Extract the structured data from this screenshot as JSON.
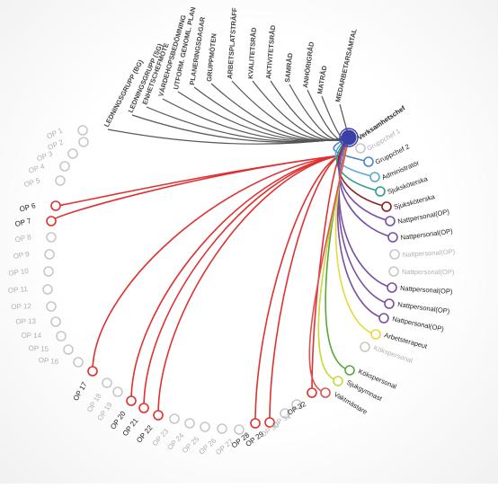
{
  "hub_label": "Verksamhetschef",
  "meeting_labels": [
    "LEDNINGSGRUPP (BG)",
    "LEDNINGSGRUPP (SG)",
    "ENHETSCHEFMÖTE",
    "VÄRDEHOPSBEDÖMNING",
    "UTFORM. GENOML. PLAN",
    "PLANERINGSDAGAR",
    "GRUPPMÖTEN",
    "ARBETSPLATSTRÄFF",
    "KVALITETSRÅD",
    "AKTIVITETSRÅD",
    "SAMRÅD",
    "ANHÖRIGRÅD",
    "MATRÅD",
    "MEDARBETARSAMTAL"
  ],
  "op_nodes": [
    {
      "label": "OP 1",
      "active": false
    },
    {
      "label": "OP 2",
      "active": false
    },
    {
      "label": "OP 3",
      "active": false
    },
    {
      "label": "OP 4",
      "active": false
    },
    {
      "label": "OP 5",
      "active": false
    },
    {
      "label": "OP 6",
      "active": true
    },
    {
      "label": "OP 7",
      "active": true
    },
    {
      "label": "OP 8",
      "active": false
    },
    {
      "label": "OP 9",
      "active": false
    },
    {
      "label": "OP 10",
      "active": false
    },
    {
      "label": "OP 11",
      "active": false
    },
    {
      "label": "OP 12",
      "active": false
    },
    {
      "label": "OP 13",
      "active": false
    },
    {
      "label": "OP 14",
      "active": false
    },
    {
      "label": "OP 15",
      "active": false
    },
    {
      "label": "OP 16",
      "active": false
    },
    {
      "label": "OP 17",
      "active": true
    },
    {
      "label": "OP 18",
      "active": false
    },
    {
      "label": "OP 19",
      "active": false
    },
    {
      "label": "OP 20",
      "active": true
    },
    {
      "label": "OP 21",
      "active": true
    },
    {
      "label": "OP 22",
      "active": true
    },
    {
      "label": "OP 23",
      "active": false
    },
    {
      "label": "OP 24",
      "active": false
    },
    {
      "label": "OP 25",
      "active": false
    },
    {
      "label": "OP 26",
      "active": false
    },
    {
      "label": "OP 27",
      "active": false
    },
    {
      "label": "OP 28",
      "active": true
    },
    {
      "label": "OP 29",
      "active": true
    },
    {
      "label": "OP 30",
      "active": false
    },
    {
      "label": "OP 31",
      "active": false
    },
    {
      "label": "OP 32",
      "active": true
    }
  ],
  "staff_nodes": [
    {
      "label": "Verksamhetschef",
      "color": "#3b3fa6",
      "active": true,
      "hub": true
    },
    {
      "label": "Gruppchef 1",
      "color": "#5b8fd1",
      "active": false
    },
    {
      "label": "Gruppchef 2",
      "color": "#4a86cc",
      "active": true
    },
    {
      "label": "Administratör",
      "color": "#57a9d6",
      "active": true
    },
    {
      "label": "Sjuksköterska",
      "color": "#2f9e8f",
      "active": true
    },
    {
      "label": "Sjuksköterska",
      "color": "#8b1e1e",
      "active": true
    },
    {
      "label": "Nattpersonal(OP)",
      "color": "#7a4fa3",
      "active": true
    },
    {
      "label": "Nattpersonal(OP)",
      "color": "#7a4fa3",
      "active": true
    },
    {
      "label": "Nattpersonal(OP)",
      "color": "#7a4fa3",
      "active": false
    },
    {
      "label": "Nattpersonal(OP)",
      "color": "#7a4fa3",
      "active": false
    },
    {
      "label": "Nattpersonal(OP)",
      "color": "#7a4fa3",
      "active": true
    },
    {
      "label": "Nattpersonal(OP)",
      "color": "#7a4fa3",
      "active": true
    },
    {
      "label": "Nattpersonal(OP)",
      "color": "#7a4fa3",
      "active": true
    },
    {
      "label": "Arbetsterapeut",
      "color": "#e5d93b",
      "active": true
    },
    {
      "label": "Kökspersonal",
      "color": "#5ca63a",
      "active": false
    },
    {
      "label": "Kökspersonal",
      "color": "#5ca63a",
      "active": true
    },
    {
      "label": "Sjukgymnast",
      "color": "#c9d83a",
      "active": true
    },
    {
      "label": "Vaktmästare",
      "color": "#e05050",
      "active": true
    }
  ],
  "colors": {
    "meeting_line": "#555555",
    "op_line": "#e03030",
    "inactive_node": "#c8c8c8",
    "inactive_text": "#b0b0b0",
    "meeting_text": "#444444"
  }
}
